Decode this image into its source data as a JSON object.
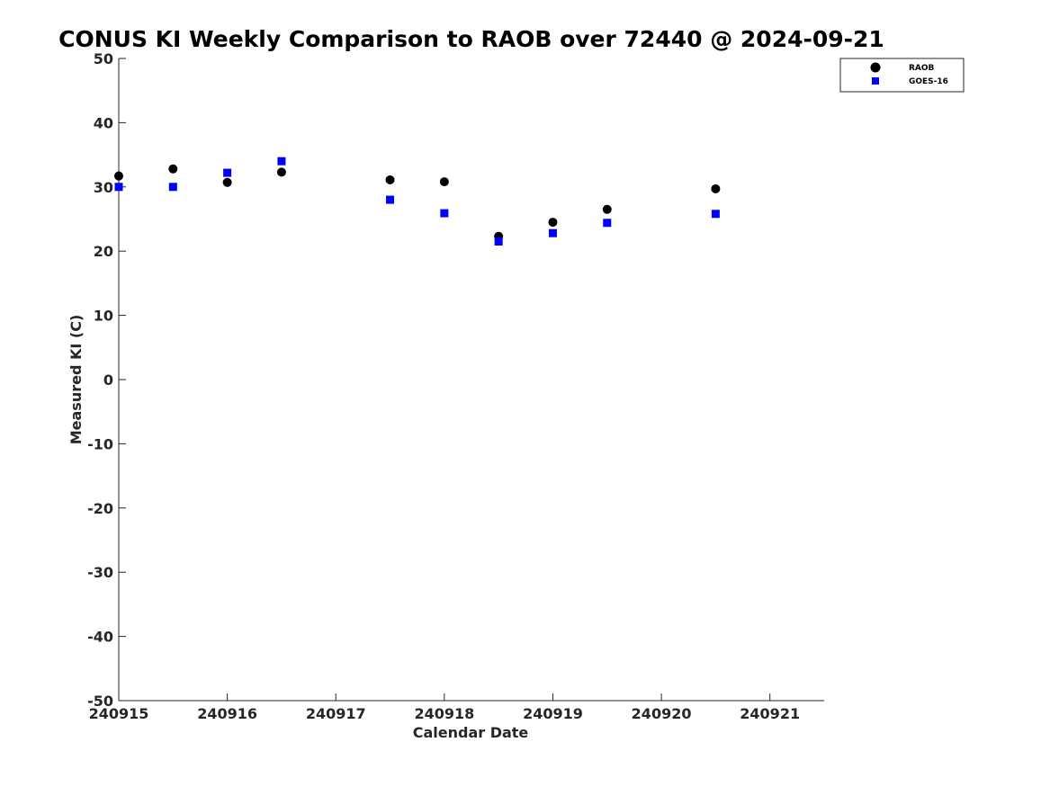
{
  "chart_data": {
    "type": "scatter",
    "title": "CONUS KI Weekly Comparison to RAOB over 72440 @ 2024-09-21",
    "xlabel": "Calendar Date",
    "ylabel": "Measured KI (C)",
    "xlim": [
      240915,
      240921.5
    ],
    "ylim": [
      -50,
      50
    ],
    "x_ticks": [
      240915,
      240916,
      240917,
      240918,
      240919,
      240920,
      240921
    ],
    "x_tick_labels": [
      "240915",
      "240916",
      "240917",
      "240918",
      "240919",
      "240920",
      "240921"
    ],
    "y_ticks": [
      -50,
      -40,
      -30,
      -20,
      -10,
      0,
      10,
      20,
      30,
      40,
      50
    ],
    "y_tick_labels": [
      "-50",
      "-40",
      "-30",
      "-20",
      "-10",
      "0",
      "10",
      "20",
      "30",
      "40",
      "50"
    ],
    "grid": false,
    "legend_position": "top-right",
    "series": [
      {
        "name": "RAOB",
        "marker": "circle",
        "color": "#000000",
        "points": [
          {
            "x": 240915.0,
            "y": 31.7
          },
          {
            "x": 240915.5,
            "y": 32.8
          },
          {
            "x": 240916.0,
            "y": 30.7
          },
          {
            "x": 240916.5,
            "y": 32.3
          },
          {
            "x": 240917.5,
            "y": 31.1
          },
          {
            "x": 240918.0,
            "y": 30.8
          },
          {
            "x": 240918.5,
            "y": 22.3
          },
          {
            "x": 240919.0,
            "y": 24.5
          },
          {
            "x": 240919.5,
            "y": 26.5
          },
          {
            "x": 240920.5,
            "y": 29.7
          }
        ]
      },
      {
        "name": "GOES-16",
        "marker": "square",
        "color": "#0000ff",
        "points": [
          {
            "x": 240915.0,
            "y": 30.0
          },
          {
            "x": 240915.5,
            "y": 30.0
          },
          {
            "x": 240916.0,
            "y": 32.2
          },
          {
            "x": 240916.5,
            "y": 34.0
          },
          {
            "x": 240917.5,
            "y": 28.0
          },
          {
            "x": 240918.0,
            "y": 25.9
          },
          {
            "x": 240918.5,
            "y": 21.5
          },
          {
            "x": 240919.0,
            "y": 22.8
          },
          {
            "x": 240919.5,
            "y": 24.4
          },
          {
            "x": 240920.5,
            "y": 25.8
          }
        ]
      }
    ]
  }
}
